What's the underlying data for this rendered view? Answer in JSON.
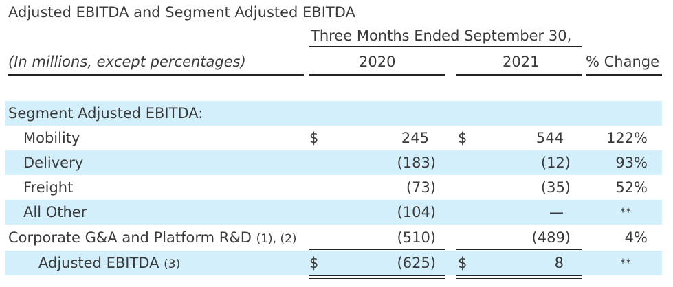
{
  "title": "Adjusted EBITDA and Segment Adjusted EBITDA",
  "period_header": "Three Months Ended September 30,",
  "units_label": "(In millions, except percentages)",
  "columns": {
    "y2020": "2020",
    "y2021": "2021",
    "change": "% Change"
  },
  "section_label": "Segment Adjusted EBITDA:",
  "rows": [
    {
      "label": "Mobility",
      "note": "",
      "dollar_2020": "$",
      "v2020": "245",
      "dollar_2021": "$",
      "v2021": "544",
      "change": "122%"
    },
    {
      "label": "Delivery",
      "note": "",
      "dollar_2020": "",
      "v2020": "(183)",
      "dollar_2021": "",
      "v2021": "(12)",
      "change": "93%"
    },
    {
      "label": "Freight",
      "note": "",
      "dollar_2020": "",
      "v2020": "(73)",
      "dollar_2021": "",
      "v2021": "(35)",
      "change": "52%"
    },
    {
      "label": "All Other",
      "note": "",
      "dollar_2020": "",
      "v2020": "(104)",
      "dollar_2021": "",
      "v2021": "—",
      "change": "**"
    },
    {
      "label": "Corporate G&A and Platform R&D",
      "note": "(1), (2)",
      "dollar_2020": "",
      "v2020": "(510)",
      "dollar_2021": "",
      "v2021": "(489)",
      "change": "4%"
    },
    {
      "label": "Adjusted EBITDA",
      "note": "(3)",
      "dollar_2020": "$",
      "v2020": "(625)",
      "dollar_2021": "$",
      "v2021": "8",
      "change": "**"
    }
  ],
  "colors": {
    "band": "#d3effb",
    "text": "#3a3a3a",
    "rule": "#222222"
  }
}
